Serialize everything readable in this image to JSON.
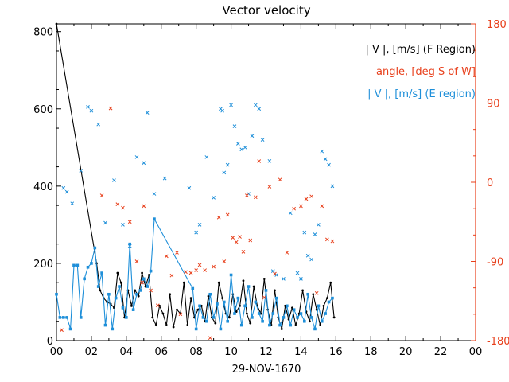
{
  "chart_data": {
    "type": "line",
    "title": "Vector velocity",
    "xlabel": "29-NOV-1670",
    "x_tick_labels": [
      "00",
      "02",
      "04",
      "06",
      "08",
      "10",
      "12",
      "14",
      "16",
      "18",
      "20",
      "22",
      "00"
    ],
    "xlim": [
      0,
      24
    ],
    "ylim_left": [
      0,
      820
    ],
    "y_ticks_left": [
      0,
      200,
      400,
      600,
      800
    ],
    "ylim_right": [
      -180,
      180
    ],
    "y_ticks_right": [
      -180,
      -90,
      0,
      90,
      180
    ],
    "legend": [
      "| V |, [m/s] (F Region)",
      "angle, [deg S of W]",
      "| V |, [m/s] (E region)"
    ],
    "colors": {
      "f_region": "#000000",
      "angle": "#e8401c",
      "e_region": "#1e8fd9"
    },
    "series": [
      {
        "name": "| V |, [m/s] (F Region)",
        "axis": "left",
        "style": "line+markers",
        "x": [
          0.0,
          2.3,
          2.5,
          2.7,
          2.9,
          3.1,
          3.3,
          3.5,
          3.7,
          3.9,
          4.1,
          4.3,
          4.5,
          4.7,
          4.9,
          5.1,
          5.3,
          5.5,
          5.7,
          5.9,
          6.1,
          6.3,
          6.5,
          6.7,
          6.9,
          7.1,
          7.3,
          7.5,
          7.7,
          7.9,
          8.1,
          8.3,
          8.5,
          8.7,
          8.9,
          9.1,
          9.3,
          9.5,
          9.7,
          9.9,
          10.1,
          10.3,
          10.5,
          10.7,
          10.9,
          11.1,
          11.3,
          11.5,
          11.7,
          11.9,
          12.1,
          12.3,
          12.5,
          12.7,
          12.9,
          13.1,
          13.3,
          13.5,
          13.7,
          13.9,
          14.1,
          14.3,
          14.5,
          14.7,
          14.9,
          15.1,
          15.3,
          15.5,
          15.7,
          15.9
        ],
        "values": [
          820,
          200,
          130,
          110,
          100,
          95,
          85,
          175,
          150,
          60,
          130,
          90,
          130,
          115,
          175,
          140,
          170,
          60,
          40,
          90,
          70,
          40,
          120,
          35,
          80,
          70,
          150,
          40,
          110,
          60,
          80,
          90,
          50,
          115,
          60,
          45,
          150,
          110,
          70,
          60,
          120,
          75,
          90,
          155,
          70,
          45,
          140,
          90,
          70,
          160,
          80,
          40,
          130,
          60,
          30,
          90,
          55,
          85,
          40,
          70,
          130,
          75,
          50,
          120,
          80,
          40,
          90,
          110,
          150,
          60
        ]
      },
      {
        "name": "| V |, [m/s] (E region)",
        "axis": "left",
        "style": "line+markers",
        "x": [
          0.0,
          0.2,
          0.4,
          0.6,
          0.8,
          1.0,
          1.2,
          1.4,
          1.6,
          1.8,
          2.0,
          2.2,
          2.4,
          2.6,
          2.8,
          3.0,
          3.2,
          3.4,
          3.6,
          3.8,
          4.0,
          4.2,
          4.4,
          4.6,
          4.8,
          5.0,
          5.2,
          5.4,
          5.6,
          7.8,
          8.0,
          8.2,
          8.4,
          8.6,
          8.8,
          9.0,
          9.2,
          9.4,
          9.6,
          9.8,
          10.0,
          10.2,
          10.4,
          10.6,
          10.8,
          11.0,
          11.2,
          11.4,
          11.6,
          11.8,
          12.0,
          12.2,
          12.4,
          12.6,
          12.8,
          13.0,
          13.2,
          13.4,
          13.6,
          13.8,
          14.0,
          14.2,
          14.4,
          14.6,
          14.8,
          15.0,
          15.2,
          15.4,
          15.6,
          15.8
        ],
        "values": [
          120,
          60,
          60,
          60,
          30,
          195,
          195,
          60,
          160,
          190,
          200,
          240,
          140,
          175,
          40,
          120,
          30,
          110,
          140,
          85,
          60,
          250,
          80,
          120,
          130,
          160,
          140,
          180,
          315,
          135,
          30,
          90,
          60,
          50,
          120,
          60,
          95,
          30,
          100,
          50,
          170,
          70,
          110,
          40,
          90,
          140,
          60,
          100,
          70,
          50,
          130,
          40,
          70,
          110,
          40,
          60,
          90,
          40,
          80,
          60,
          70,
          50,
          120,
          60,
          30,
          90,
          50,
          70,
          100,
          110
        ]
      },
      {
        "name": "| V |, [m/s] (E region) scatter",
        "axis": "left",
        "style": "markers",
        "x": [
          0.4,
          0.6,
          0.9,
          1.4,
          1.8,
          2.0,
          2.4,
          2.8,
          3.3,
          3.8,
          4.2,
          4.6,
          5.0,
          5.2,
          5.6,
          6.2,
          7.6,
          8.0,
          8.2,
          8.6,
          9.0,
          9.4,
          9.5,
          9.6,
          9.8,
          10.0,
          10.2,
          10.4,
          10.6,
          10.8,
          11.0,
          11.2,
          11.4,
          11.6,
          11.8,
          12.2,
          12.4,
          12.6,
          13.0,
          13.4,
          13.8,
          14.0,
          14.2,
          14.4,
          14.6,
          14.8,
          15.0,
          15.2,
          15.4,
          15.6,
          15.8
        ],
        "values": [
          395,
          385,
          355,
          440,
          605,
          595,
          560,
          305,
          415,
          300,
          245,
          475,
          460,
          590,
          380,
          420,
          395,
          280,
          300,
          475,
          370,
          600,
          595,
          435,
          455,
          610,
          555,
          510,
          495,
          500,
          380,
          530,
          610,
          600,
          520,
          465,
          180,
          170,
          160,
          330,
          175,
          160,
          280,
          220,
          210,
          275,
          300,
          490,
          470,
          455,
          400
        ]
      },
      {
        "name": "angle, [deg S of W]",
        "axis": "right",
        "style": "markers",
        "x": [
          0.3,
          2.6,
          3.1,
          3.5,
          3.8,
          4.2,
          4.6,
          4.9,
          5.0,
          5.4,
          5.8,
          6.3,
          6.6,
          6.9,
          7.1,
          7.4,
          7.7,
          8.0,
          8.2,
          8.5,
          8.8,
          9.0,
          9.3,
          9.6,
          9.8,
          10.1,
          10.3,
          10.5,
          10.7,
          10.9,
          11.1,
          11.4,
          11.6,
          11.9,
          12.2,
          12.5,
          12.8,
          13.2,
          13.6,
          14.0,
          14.3,
          14.6,
          14.9,
          15.2,
          15.5,
          15.8
        ],
        "values": [
          -168,
          -15,
          84,
          -25,
          -29,
          -45,
          -90,
          -114,
          -27,
          -123,
          -140,
          -84,
          -106,
          -80,
          -150,
          -102,
          -103,
          -100,
          -94,
          -100,
          -177,
          -96,
          -40,
          -90,
          -37,
          -63,
          -68,
          -62,
          -79,
          -15,
          -66,
          -17,
          24,
          -131,
          -5,
          -104,
          3,
          -80,
          -30,
          -27,
          -19,
          -16,
          -126,
          -27,
          -65,
          -67
        ]
      }
    ]
  }
}
